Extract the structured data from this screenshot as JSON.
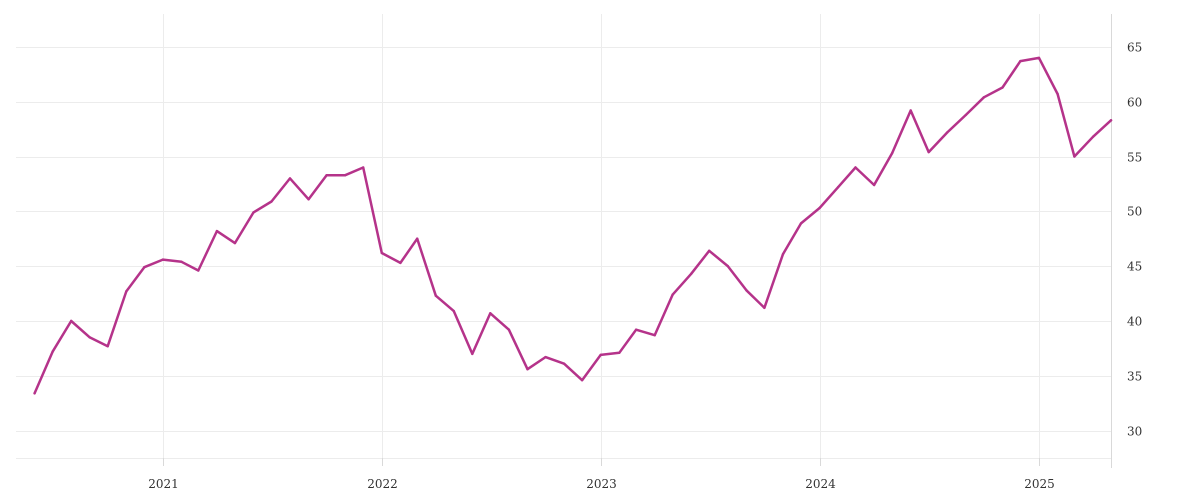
{
  "chart_data": {
    "type": "line",
    "title": "",
    "xlabel": "",
    "ylabel": "",
    "x_ticks": [
      "2021",
      "2022",
      "2023",
      "2024",
      "2025"
    ],
    "y_ticks": [
      30,
      35,
      40,
      45,
      50,
      55,
      60,
      65
    ],
    "ylim": [
      27.5,
      68
    ],
    "xlim": [
      "2020-05-01",
      "2025-05-01"
    ],
    "grid": true,
    "y_axis_side": "right",
    "series": [
      {
        "color": "#b5338a",
        "points": [
          [
            "2020-06",
            33.4
          ],
          [
            "2020-07",
            37.2
          ],
          [
            "2020-08",
            40.0
          ],
          [
            "2020-09",
            38.5
          ],
          [
            "2020-10",
            37.7
          ],
          [
            "2020-11",
            42.7
          ],
          [
            "2020-12",
            44.9
          ],
          [
            "2021-01",
            45.6
          ],
          [
            "2021-02",
            45.4
          ],
          [
            "2021-03",
            44.6
          ],
          [
            "2021-04",
            48.2
          ],
          [
            "2021-05",
            47.1
          ],
          [
            "2021-06",
            49.9
          ],
          [
            "2021-07",
            50.9
          ],
          [
            "2021-08",
            53.0
          ],
          [
            "2021-09",
            51.1
          ],
          [
            "2021-10",
            53.3
          ],
          [
            "2021-11",
            53.3
          ],
          [
            "2021-12",
            54.0
          ],
          [
            "2022-01",
            46.2
          ],
          [
            "2022-02",
            45.3
          ],
          [
            "2022-03",
            47.5
          ],
          [
            "2022-04",
            42.3
          ],
          [
            "2022-05",
            40.9
          ],
          [
            "2022-06",
            37.0
          ],
          [
            "2022-07",
            40.7
          ],
          [
            "2022-08",
            39.2
          ],
          [
            "2022-09",
            35.6
          ],
          [
            "2022-10",
            36.7
          ],
          [
            "2022-11",
            36.1
          ],
          [
            "2022-12",
            34.6
          ],
          [
            "2023-01",
            36.9
          ],
          [
            "2023-02",
            37.1
          ],
          [
            "2023-03",
            39.2
          ],
          [
            "2023-04",
            38.7
          ],
          [
            "2023-05",
            42.4
          ],
          [
            "2023-06",
            44.3
          ],
          [
            "2023-07",
            46.4
          ],
          [
            "2023-08",
            45.0
          ],
          [
            "2023-09",
            42.8
          ],
          [
            "2023-10",
            41.2
          ],
          [
            "2023-11",
            46.1
          ],
          [
            "2023-12",
            48.9
          ],
          [
            "2024-01",
            50.3
          ],
          [
            "2024-02",
            52.2
          ],
          [
            "2024-03",
            54.0
          ],
          [
            "2024-04",
            52.4
          ],
          [
            "2024-05",
            55.3
          ],
          [
            "2024-06",
            59.2
          ],
          [
            "2024-07",
            55.4
          ],
          [
            "2024-08",
            57.2
          ],
          [
            "2024-09",
            58.8
          ],
          [
            "2024-10",
            60.4
          ],
          [
            "2024-11",
            61.3
          ],
          [
            "2024-12",
            63.7
          ],
          [
            "2025-01",
            64.0
          ],
          [
            "2025-02",
            60.7
          ],
          [
            "2025-03",
            55.0
          ],
          [
            "2025-04",
            56.8
          ],
          [
            "2025-05",
            58.3
          ]
        ]
      }
    ]
  }
}
